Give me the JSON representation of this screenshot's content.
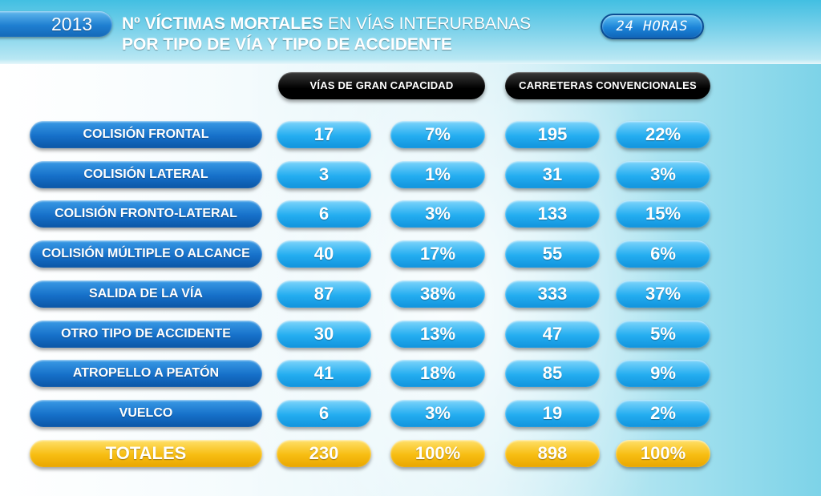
{
  "header": {
    "year": "2013",
    "title_line1_bold": "Nº VÍCTIMAS MORTALES",
    "title_line1_rest": " EN VÍAS INTERURBANAS",
    "title_line2": "POR TIPO DE VÍA Y TIPO DE ACCIDENTE",
    "brand": "24 HORAS"
  },
  "columns": {
    "gran_capacidad": "VÍAS DE GRAN CAPACIDAD",
    "convencionales": "CARRETERAS CONVENCIONALES"
  },
  "rows": [
    {
      "label": "COLISIÓN FRONTAL",
      "gc_n": "17",
      "gc_p": "7%",
      "cc_n": "195",
      "cc_p": "22%"
    },
    {
      "label": "COLISIÓN  LATERAL",
      "gc_n": "3",
      "gc_p": "1%",
      "cc_n": "31",
      "cc_p": "3%"
    },
    {
      "label": "COLISIÓN FRONTO-LATERAL",
      "gc_n": "6",
      "gc_p": "3%",
      "cc_n": "133",
      "cc_p": "15%"
    },
    {
      "label": "COLISIÓN MÚLTIPLE O ALCANCE",
      "gc_n": "40",
      "gc_p": "17%",
      "cc_n": "55",
      "cc_p": "6%"
    },
    {
      "label": "SALIDA DE LA VÍA",
      "gc_n": "87",
      "gc_p": "38%",
      "cc_n": "333",
      "cc_p": "37%"
    },
    {
      "label": "OTRO TIPO DE ACCIDENTE",
      "gc_n": "30",
      "gc_p": "13%",
      "cc_n": "47",
      "cc_p": "5%"
    },
    {
      "label": "ATROPELLO A PEATÓN",
      "gc_n": "41",
      "gc_p": "18%",
      "cc_n": "85",
      "cc_p": "9%"
    },
    {
      "label": "VUELCO",
      "gc_n": "6",
      "gc_p": "3%",
      "cc_n": "19",
      "cc_p": "2%"
    }
  ],
  "totals": {
    "label": "TOTALES",
    "gc_n": "230",
    "gc_p": "100%",
    "cc_n": "898",
    "cc_p": "100%"
  },
  "colors": {
    "label_blue": "#1670c9",
    "value_cyan": "#24adf0",
    "total_yellow": "#f7bd12",
    "header_black": "#000000"
  }
}
